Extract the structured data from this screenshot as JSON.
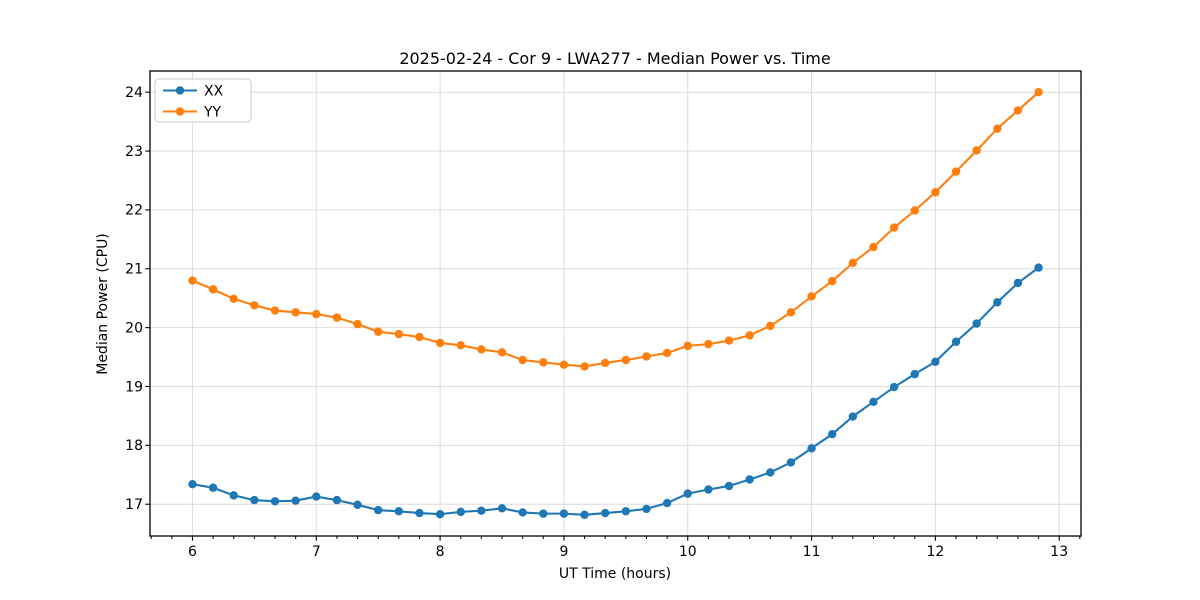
{
  "figure": {
    "background": "#ffffff",
    "grid_color": "#dcdcdc",
    "spine_color": "#000000",
    "tick_color": "#000000",
    "legend_border_color": "#cccccc"
  },
  "chart_data": {
    "type": "line",
    "title": "2025-02-24 - Cor 9 - LWA277 - Median Power vs. Time",
    "xlabel": "UT Time (hours)",
    "ylabel": "Median Power (CPU)",
    "grid": true,
    "legend_position": "upper left",
    "xlim": [
      5.657,
      13.176
    ],
    "ylim": [
      16.46,
      24.36
    ],
    "xticks": [
      6,
      7,
      8,
      9,
      10,
      11,
      12,
      13
    ],
    "yticks": [
      17,
      18,
      19,
      20,
      21,
      22,
      23,
      24
    ],
    "x_minor_step": 0.1666667,
    "x": [
      6.0,
      6.1667,
      6.3333,
      6.5,
      6.6667,
      6.8333,
      7.0,
      7.1667,
      7.3333,
      7.5,
      7.6667,
      7.8333,
      8.0,
      8.1667,
      8.3333,
      8.5,
      8.6667,
      8.8333,
      9.0,
      9.1667,
      9.3333,
      9.5,
      9.6667,
      9.8333,
      10.0,
      10.1667,
      10.3333,
      10.5,
      10.6667,
      10.8333,
      11.0,
      11.1667,
      11.3333,
      11.5,
      11.6667,
      11.8333,
      12.0,
      12.1667,
      12.3333,
      12.5,
      12.6667,
      12.8333
    ],
    "series": [
      {
        "name": "XX",
        "color": "#1f77b4",
        "marker": "circle",
        "values": [
          17.34,
          17.28,
          17.15,
          17.07,
          17.05,
          17.06,
          17.13,
          17.07,
          16.99,
          16.9,
          16.88,
          16.85,
          16.83,
          16.87,
          16.89,
          16.93,
          16.86,
          16.84,
          16.84,
          16.82,
          16.85,
          16.88,
          16.92,
          17.02,
          17.18,
          17.25,
          17.31,
          17.42,
          17.54,
          17.71,
          17.95,
          18.19,
          18.49,
          18.74,
          18.99,
          19.21,
          19.42,
          19.76,
          20.07,
          20.43,
          20.76,
          21.02
        ]
      },
      {
        "name": "YY",
        "color": "#ff7f0e",
        "marker": "circle",
        "values": [
          20.8,
          20.65,
          20.49,
          20.38,
          20.29,
          20.26,
          20.23,
          20.17,
          20.06,
          19.93,
          19.89,
          19.84,
          19.74,
          19.7,
          19.63,
          19.58,
          19.45,
          19.41,
          19.37,
          19.34,
          19.4,
          19.45,
          19.51,
          19.57,
          19.69,
          19.72,
          19.78,
          19.87,
          20.03,
          20.26,
          20.53,
          20.79,
          21.1,
          21.37,
          21.7,
          21.99,
          22.3,
          22.65,
          23.01,
          23.38,
          23.69,
          24.0
        ]
      }
    ]
  }
}
